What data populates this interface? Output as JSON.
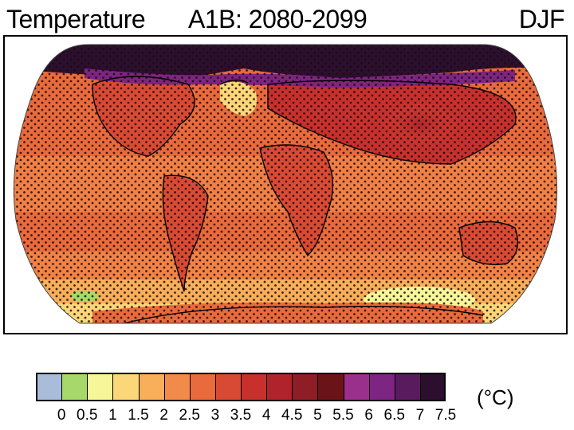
{
  "header": {
    "variable": "Temperature",
    "scenario": "A1B: 2080-2099",
    "season": "DJF"
  },
  "legend": {
    "unit": "(°C)",
    "ticks": [
      "0",
      "0.5",
      "1",
      "1.5",
      "2",
      "2.5",
      "3",
      "3.5",
      "4",
      "4.5",
      "5",
      "5.5",
      "6",
      "6.5",
      "7",
      "7.5"
    ],
    "colors": [
      "#a9bcd9",
      "#a6d96a",
      "#f7f79a",
      "#fcd77a",
      "#f9ae5a",
      "#f28a4a",
      "#e96a3c",
      "#d94a34",
      "#c8302e",
      "#b0232a",
      "#8e1d26",
      "#6b1418",
      "#9b2f8c",
      "#7e2581",
      "#5a1b5e",
      "#2c0f2e"
    ]
  },
  "map": {
    "projection": "Robinson",
    "stippling": "dots",
    "background_color": "#e96a3c"
  }
}
